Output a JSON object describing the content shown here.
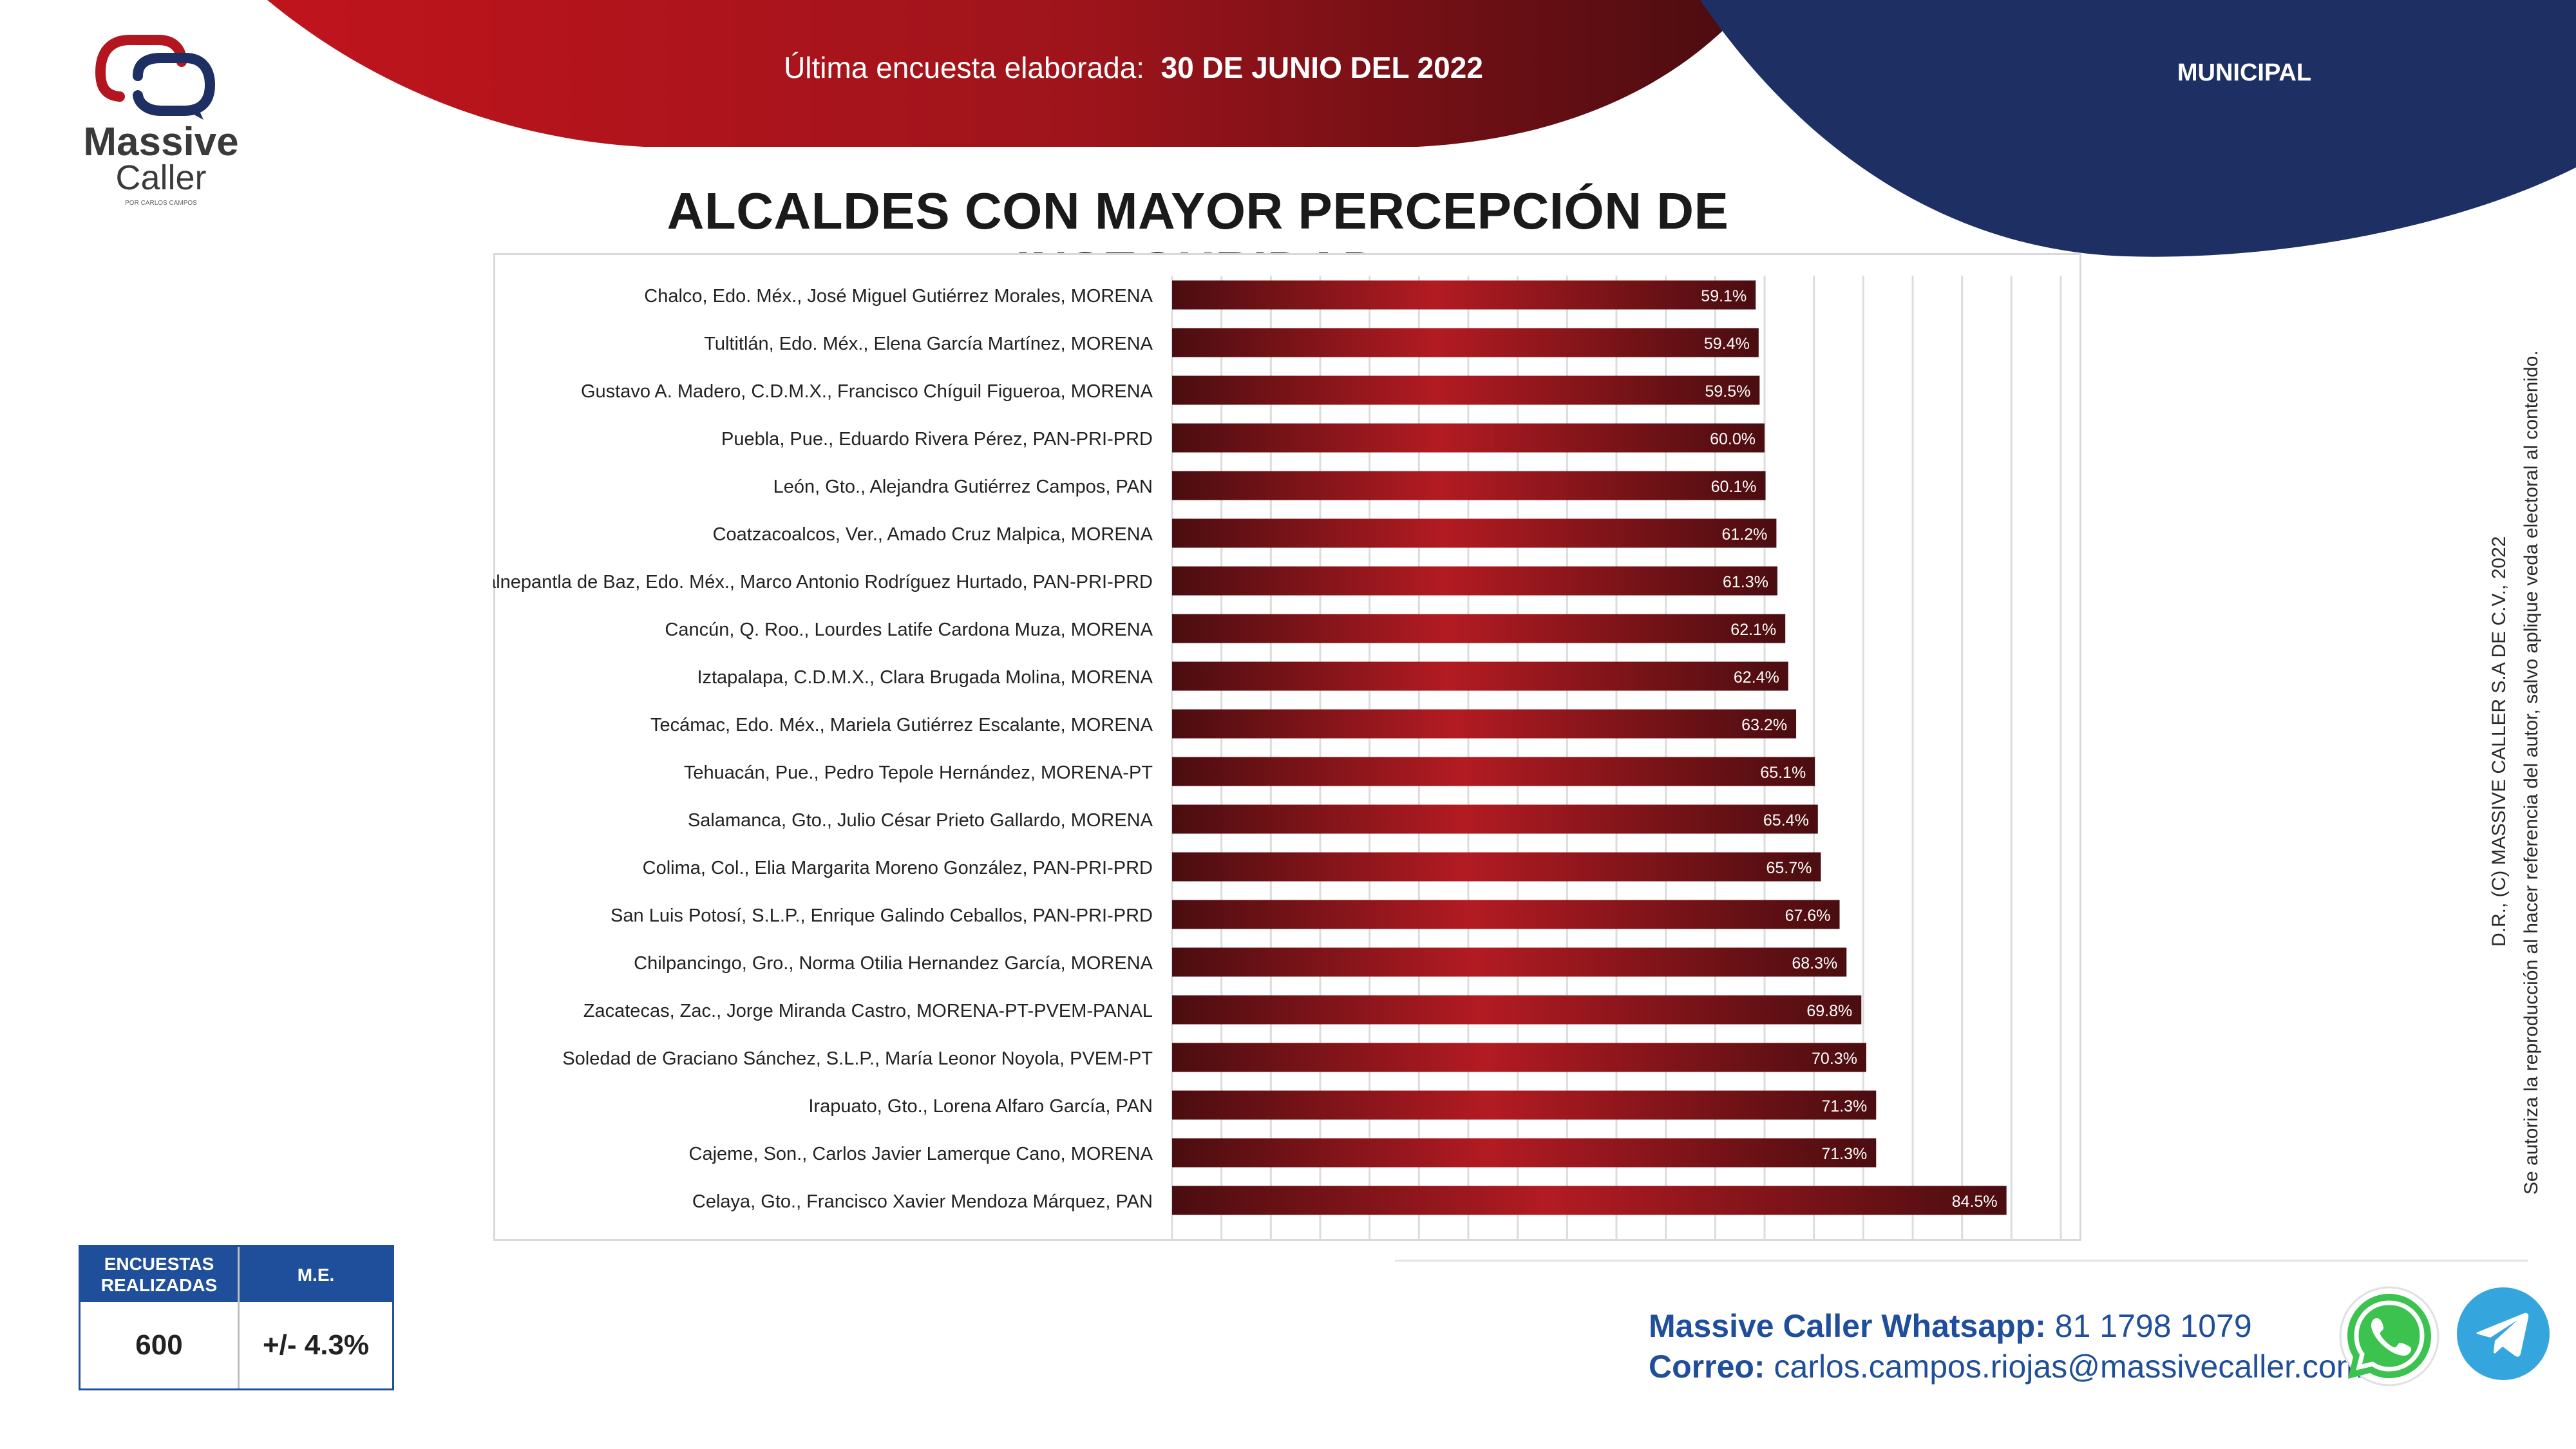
{
  "header": {
    "survey_label": "Última encuesta elaborada:",
    "survey_date": "30 DE JUNIO DEL 2022",
    "section": "MUNICIPAL"
  },
  "logo": {
    "line1": "Massive",
    "line2": "Caller",
    "line3": "POR CARLOS CAMPOS"
  },
  "colors": {
    "red": "#b4161f",
    "dark_red": "#5e1115",
    "navy": "#1d2f63",
    "table_blue": "#1f4e9a"
  },
  "chart_data": {
    "type": "bar",
    "orientation": "horizontal",
    "title": "ALCALDES CON MAYOR PERCEPCIÓN DE INSEGURIDAD",
    "categories": [
      "Chalco, Edo. Méx., José Miguel Gutiérrez Morales, MORENA",
      "Tultitlán, Edo. Méx., Elena García Martínez, MORENA",
      "Gustavo A. Madero, C.D.M.X., Francisco Chíguil Figueroa, MORENA",
      "Puebla, Pue., Eduardo Rivera Pérez, PAN-PRI-PRD",
      "León, Gto., Alejandra Gutiérrez Campos, PAN",
      "Coatzacoalcos, Ver., Amado Cruz Malpica, MORENA",
      "Tlalnepantla de Baz, Edo. Méx., Marco Antonio Rodríguez Hurtado, PAN-PRI-PRD",
      "Cancún, Q. Roo., Lourdes Latife Cardona Muza, MORENA",
      "Iztapalapa, C.D.M.X., Clara Brugada Molina, MORENA",
      "Tecámac, Edo. Méx., Mariela Gutiérrez Escalante, MORENA",
      "Tehuacán, Pue., Pedro Tepole Hernández, MORENA-PT",
      "Salamanca, Gto., Julio César Prieto Gallardo, MORENA",
      "Colima, Col., Elia Margarita Moreno González, PAN-PRI-PRD",
      "San Luis Potosí, S.L.P., Enrique Galindo Ceballos, PAN-PRI-PRD",
      "Chilpancingo, Gro., Norma Otilia Hernandez García, MORENA",
      "Zacatecas, Zac., Jorge Miranda Castro, MORENA-PT-PVEM-PANAL",
      "Soledad de Graciano Sánchez, S.L.P., María Leonor Noyola, PVEM-PT",
      "Irapuato, Gto., Lorena Alfaro García, PAN",
      "Cajeme, Son., Carlos Javier Lamerque Cano, MORENA",
      "Celaya, Gto., Francisco Xavier Mendoza Márquez, PAN"
    ],
    "values": [
      59.1,
      59.4,
      59.5,
      60.0,
      60.1,
      61.2,
      61.3,
      62.1,
      62.4,
      63.2,
      65.1,
      65.4,
      65.7,
      67.6,
      68.3,
      69.8,
      70.3,
      71.3,
      71.3,
      84.5
    ],
    "value_labels": [
      "59.1%",
      "59.4%",
      "59.5%",
      "60.0%",
      "60.1%",
      "61.2%",
      "61.3%",
      "62.1%",
      "62.4%",
      "63.2%",
      "65.1%",
      "65.4%",
      "65.7%",
      "67.6%",
      "68.3%",
      "69.8%",
      "70.3%",
      "71.3%",
      "71.3%",
      "84.5%"
    ],
    "xlim": [
      0,
      90
    ],
    "grid": true,
    "xlabel": "",
    "ylabel": ""
  },
  "stats": {
    "surveys_header": "ENCUESTAS REALIZADAS",
    "me_header": "M.E.",
    "surveys_value": "600",
    "me_value": "+/- 4.3%"
  },
  "contact": {
    "whatsapp_label": "Massive Caller Whatsapp:",
    "whatsapp_number": "81 1798 1079",
    "email_label": "Correo:",
    "email": "carlos.campos.riojas@massivecaller.com"
  },
  "side_note": {
    "line1": "D.R., (C) MASSIVE CALLER S.A DE C.V., 2022",
    "line2": "Se autoriza la reproducción al hacer referencia del autor, salvo aplique veda electoral al contenido."
  },
  "icons": {
    "whatsapp": "whatsapp-icon",
    "telegram": "telegram-icon",
    "logo": "massive-caller-logo-icon"
  }
}
